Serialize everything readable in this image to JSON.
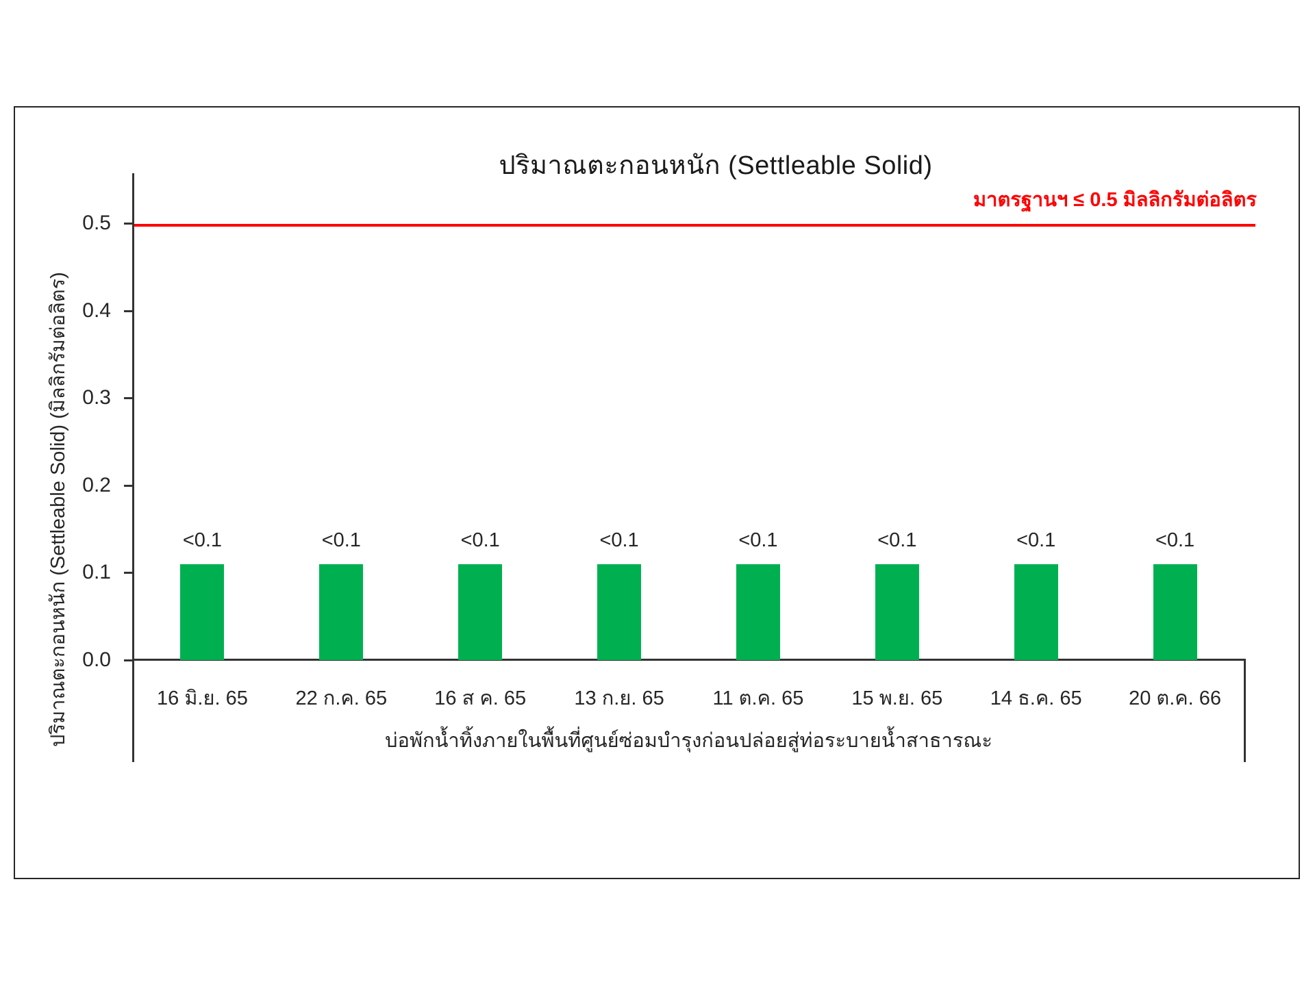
{
  "chart_data": {
    "type": "bar",
    "title": "ปริมาณตะกอนหนัก (Settleable Solid)",
    "categories": [
      "16 มิ.ย. 65",
      "22 ก.ค. 65",
      "16 ส ค. 65",
      "13 ก.ย. 65",
      "11 ต.ค. 65",
      "15 พ.ย. 65",
      "14 ธ.ค. 65",
      "20 ต.ค. 66"
    ],
    "values": [
      0.11,
      0.11,
      0.11,
      0.11,
      0.11,
      0.11,
      0.11,
      0.11
    ],
    "value_labels": [
      "<0.1",
      "<0.1",
      "<0.1",
      "<0.1",
      "<0.1",
      "<0.1",
      "<0.1",
      "<0.1"
    ],
    "xlabel": "บ่อพักน้ำทิ้งภายในพื้นที่ศูนย์ซ่อมบำรุงก่อนปล่อยสู่ท่อระบายน้ำสาธารณะ",
    "ylabel": "ปริมาณตะกอนหนัก (Settleable Solid) (มิลลิกรัมต่อลิตร)",
    "yticks": [
      {
        "value": 0.0,
        "label": "0.0"
      },
      {
        "value": 0.1,
        "label": "0.1"
      },
      {
        "value": 0.2,
        "label": "0.2"
      },
      {
        "value": 0.3,
        "label": "0.3"
      },
      {
        "value": 0.4,
        "label": "0.4"
      },
      {
        "value": 0.5,
        "label": "0.5"
      }
    ],
    "ylim": [
      0,
      0.56
    ],
    "grid": false,
    "legend_position": "none",
    "standard_line": {
      "value": 0.5,
      "label": "มาตรฐานฯ ≤ 0.5 มิลลิกรัมต่อลิตร"
    },
    "colors": {
      "bar": "#00B050",
      "standard": "#FF0000",
      "axis": "#333333",
      "text": "#262626"
    }
  }
}
